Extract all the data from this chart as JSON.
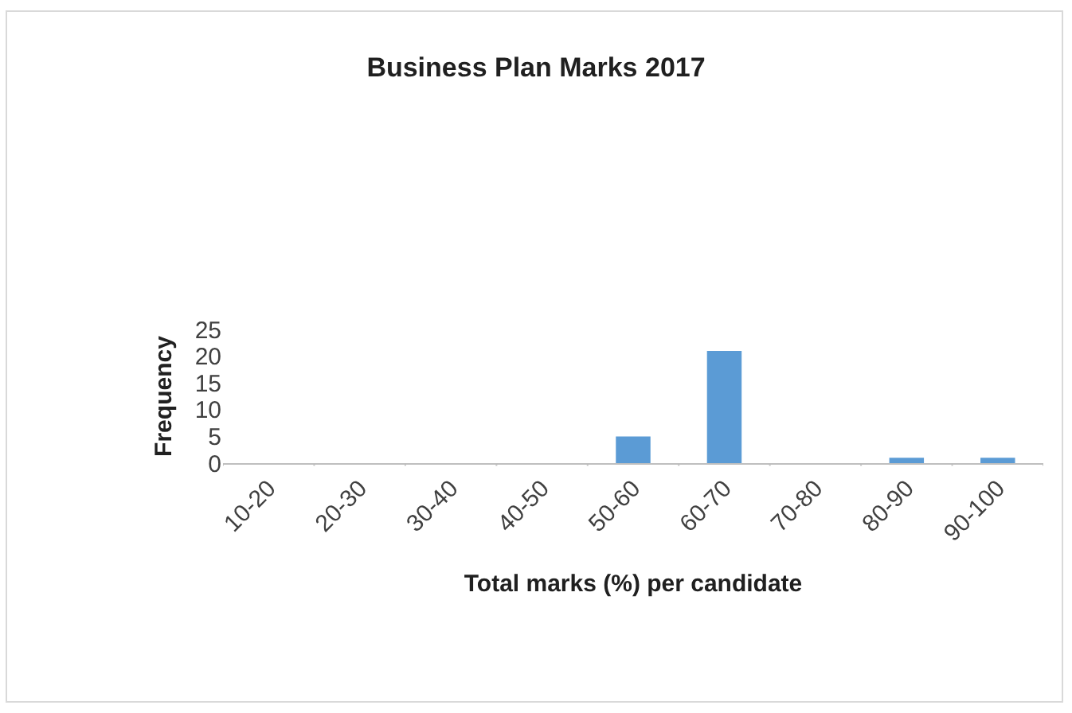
{
  "chart_data": {
    "type": "bar",
    "title": "Business Plan Marks 2017",
    "xlabel": "Total marks (%) per candidate",
    "ylabel": "Frequency",
    "categories": [
      "10-20",
      "20-30",
      "30-40",
      "40-50",
      "50-60",
      "60-70",
      "70-80",
      "80-90",
      "90-100"
    ],
    "values": [
      0,
      0,
      0,
      0,
      5,
      21,
      0,
      1,
      1
    ],
    "color": "#5b9bd5",
    "ylim": [
      0,
      25
    ],
    "yticks": [
      0,
      5,
      10,
      15,
      20,
      25
    ],
    "legend": false
  }
}
